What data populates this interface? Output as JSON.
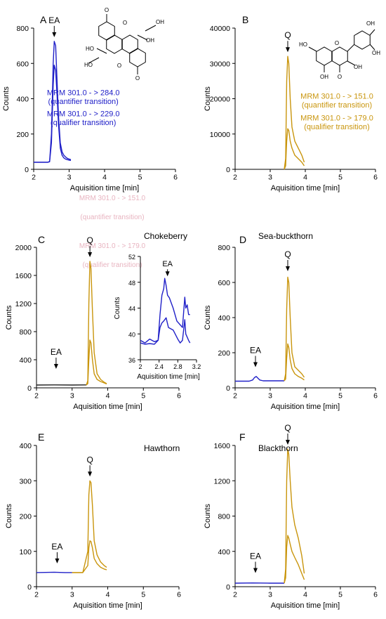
{
  "figure": {
    "colors": {
      "ea": "#2020c8",
      "q": "#c9950c",
      "faint": "#e8b4c0"
    },
    "watermark": [
      "MRM 301.0 - > 151.0",
      "(quantifier transition)",
      "MRM 301.0 - > 179.0",
      "(qualifier transition)"
    ]
  },
  "chart_data": [
    {
      "type": "line",
      "panel": "A",
      "subtitle": "",
      "xlabel": "Aquisition time [min]",
      "ylabel": "Counts",
      "xlim": [
        2,
        6
      ],
      "ylim": [
        0,
        800
      ],
      "xticks": [
        2,
        3,
        4,
        5,
        6
      ],
      "yticks": [
        0,
        200,
        400,
        600,
        800
      ],
      "series": [
        {
          "color": "ea",
          "x": [
            2.0,
            2.4,
            2.45,
            2.5,
            2.55,
            2.58,
            2.62,
            2.66,
            2.7,
            2.75,
            2.8,
            2.85,
            2.9,
            2.95,
            3.0,
            3.05
          ],
          "y": [
            40,
            40,
            45,
            200,
            600,
            725,
            700,
            500,
            300,
            150,
            100,
            80,
            70,
            62,
            58,
            55
          ]
        },
        {
          "color": "ea",
          "x": [
            2.0,
            2.4,
            2.45,
            2.5,
            2.55,
            2.58,
            2.62,
            2.66,
            2.7,
            2.75,
            2.8,
            2.85,
            2.9,
            2.95,
            3.0,
            3.05
          ],
          "y": [
            40,
            40,
            43,
            150,
            480,
            590,
            560,
            420,
            250,
            120,
            80,
            65,
            58,
            55,
            52,
            50
          ]
        }
      ],
      "annotations": [
        {
          "label": "EA",
          "x": 2.58,
          "y": 725,
          "color": "#000000"
        },
        {
          "label": "MRM 301.0 - > 284.0",
          "x": 3.4,
          "y": 420,
          "color": "ea"
        },
        {
          "label": "(quantifier transition)",
          "x": 3.4,
          "y": 370,
          "color": "ea"
        },
        {
          "label": "MRM 301.0 - > 229.0",
          "x": 3.4,
          "y": 300,
          "color": "ea"
        },
        {
          "label": "(qualifier transition)",
          "x": 3.4,
          "y": 250,
          "color": "ea"
        }
      ],
      "molecule": "ellagic-acid",
      "molecule_labels": [
        "HO",
        "OH",
        "HO",
        "OH",
        "O",
        "O",
        "O",
        "O"
      ]
    },
    {
      "type": "line",
      "panel": "B",
      "subtitle": "",
      "xlabel": "Aquisition time [min]",
      "ylabel": "Counts",
      "xlim": [
        2,
        6
      ],
      "ylim": [
        0,
        40000
      ],
      "xticks": [
        2,
        3,
        4,
        5,
        6
      ],
      "yticks": [
        0,
        10000,
        20000,
        30000,
        40000
      ],
      "series": [
        {
          "color": "q",
          "x": [
            3.4,
            3.44,
            3.47,
            3.5,
            3.53,
            3.57,
            3.62,
            3.7,
            3.8,
            3.9,
            3.97
          ],
          "y": [
            0,
            3000,
            25000,
            32000,
            30000,
            20000,
            12000,
            8000,
            6000,
            4000,
            2000
          ]
        },
        {
          "color": "q",
          "x": [
            3.4,
            3.44,
            3.47,
            3.5,
            3.53,
            3.57,
            3.62,
            3.7,
            3.8,
            3.9,
            3.97
          ],
          "y": [
            0,
            1000,
            8000,
            11500,
            11000,
            8000,
            6000,
            4000,
            3000,
            2000,
            1000
          ]
        }
      ],
      "annotations": [
        {
          "label": "Q",
          "x": 3.5,
          "y": 32000,
          "color": "#000000"
        },
        {
          "label": "MRM 301.0 - > 151.0",
          "x": 4.9,
          "y": 20000,
          "color": "q"
        },
        {
          "label": "(quantifier transition)",
          "x": 4.9,
          "y": 17500,
          "color": "q"
        },
        {
          "label": "MRM 301.0 - > 179.0",
          "x": 4.9,
          "y": 13800,
          "color": "q"
        },
        {
          "label": "(qualifier transition)",
          "x": 4.9,
          "y": 11300,
          "color": "q"
        }
      ],
      "molecule": "quercetin",
      "molecule_labels": [
        "OH",
        "OH",
        "HO",
        "O",
        "OH",
        "OH",
        "O"
      ]
    },
    {
      "type": "line",
      "panel": "C",
      "subtitle": "Chokeberry",
      "xlabel": "Aquisition time [min]",
      "ylabel": "Counts",
      "xlim": [
        2,
        6
      ],
      "ylim": [
        0,
        2000
      ],
      "xticks": [
        2,
        3,
        4,
        5,
        6
      ],
      "yticks": [
        0,
        400,
        800,
        1200,
        1600,
        2000
      ],
      "series": [
        {
          "color": "#222222",
          "x": [
            2.0,
            2.5,
            3.0,
            3.4
          ],
          "y": [
            40,
            42,
            40,
            42
          ]
        },
        {
          "color": "q",
          "x": [
            3.4,
            3.44,
            3.47,
            3.5,
            3.53,
            3.57,
            3.62,
            3.7,
            3.8,
            3.9,
            3.97
          ],
          "y": [
            40,
            100,
            1200,
            1800,
            1700,
            1100,
            500,
            200,
            120,
            80,
            60
          ]
        },
        {
          "color": "q",
          "x": [
            3.4,
            3.44,
            3.47,
            3.5,
            3.53,
            3.57,
            3.62,
            3.7,
            3.8,
            3.9,
            3.97
          ],
          "y": [
            40,
            60,
            400,
            680,
            640,
            400,
            200,
            120,
            90,
            70,
            55
          ]
        }
      ],
      "annotations": [
        {
          "label": "EA",
          "x": 2.55,
          "y": 150,
          "color": "#000000"
        },
        {
          "label": "Q",
          "x": 3.5,
          "y": 1800,
          "color": "#000000"
        }
      ],
      "inset": {
        "type": "line",
        "xlabel": "Aquisition time [min]",
        "ylabel": "Counts",
        "xlim": [
          2,
          3.2
        ],
        "ylim": [
          36,
          52
        ],
        "xticks": [
          "2",
          "2.4",
          "2.8",
          "3.2"
        ],
        "xtickvals": [
          2,
          2.4,
          2.8,
          3.2
        ],
        "yticks": [
          36,
          40,
          44,
          48,
          52
        ],
        "series": [
          {
            "color": "ea",
            "x": [
              2.0,
              2.1,
              2.2,
              2.3,
              2.38,
              2.42,
              2.46,
              2.5,
              2.52,
              2.55,
              2.58,
              2.62,
              2.7,
              2.78,
              2.84,
              2.9,
              2.95,
              2.97,
              3.0,
              3.03,
              3.06
            ],
            "y": [
              39,
              38.6,
              39.2,
              38.8,
              39,
              43,
              46,
              47,
              48.6,
              47.5,
              46,
              45.6,
              44,
              42,
              41.5,
              41,
              45.7,
              44,
              44.5,
              43,
              43
            ]
          },
          {
            "color": "ea",
            "x": [
              2.0,
              2.1,
              2.2,
              2.3,
              2.38,
              2.42,
              2.46,
              2.5,
              2.55,
              2.6,
              2.7,
              2.8,
              2.85,
              2.9,
              2.95,
              2.97,
              3.0,
              3.03,
              3.06
            ],
            "y": [
              38.6,
              38.4,
              38.5,
              38.4,
              39,
              41,
              41.7,
              42,
              42.5,
              41,
              40.6,
              39.2,
              38.6,
              39,
              42.2,
              40,
              39.5,
              39,
              38.6
            ]
          }
        ],
        "annotations": [
          {
            "label": "EA",
            "x": 2.58,
            "y": 48.6
          }
        ]
      }
    },
    {
      "type": "line",
      "panel": "D",
      "subtitle": "Sea-buckthorn",
      "xlabel": "Aquisition time [min]",
      "ylabel": "Counts",
      "xlim": [
        2,
        6
      ],
      "ylim": [
        0,
        800
      ],
      "xticks": [
        2,
        3,
        4,
        5,
        6
      ],
      "yticks": [
        0,
        200,
        400,
        600,
        800
      ],
      "series": [
        {
          "color": "ea",
          "x": [
            2.0,
            2.4,
            2.5,
            2.55,
            2.6,
            2.65,
            2.7,
            2.8,
            3.0,
            3.4
          ],
          "y": [
            38,
            38,
            45,
            58,
            65,
            55,
            45,
            40,
            40,
            40
          ]
        },
        {
          "color": "q",
          "x": [
            3.4,
            3.44,
            3.47,
            3.5,
            3.53,
            3.57,
            3.62,
            3.7,
            3.8,
            3.9,
            3.97
          ],
          "y": [
            40,
            80,
            450,
            630,
            600,
            400,
            200,
            120,
            100,
            80,
            60
          ]
        },
        {
          "color": "q",
          "x": [
            3.4,
            3.44,
            3.47,
            3.5,
            3.53,
            3.57,
            3.62,
            3.7,
            3.8,
            3.9,
            3.97
          ],
          "y": [
            40,
            50,
            170,
            250,
            230,
            160,
            110,
            80,
            65,
            55,
            45
          ]
        }
      ],
      "annotations": [
        {
          "label": "EA",
          "x": 2.58,
          "y": 70,
          "color": "#000000"
        },
        {
          "label": "Q",
          "x": 3.5,
          "y": 640,
          "color": "#000000"
        }
      ]
    },
    {
      "type": "line",
      "panel": "E",
      "subtitle": "Hawthorn",
      "xlabel": "Aquisition time [min]",
      "ylabel": "Counts",
      "xlim": [
        2,
        6
      ],
      "ylim": [
        0,
        400
      ],
      "xticks": [
        2,
        3,
        4,
        5,
        6
      ],
      "yticks": [
        0,
        100,
        200,
        300,
        400
      ],
      "series": [
        {
          "color": "ea",
          "x": [
            2.0,
            2.5,
            2.8,
            3.0
          ],
          "y": [
            40,
            41,
            40,
            40
          ]
        },
        {
          "color": "q",
          "x": [
            3.0,
            3.3,
            3.44,
            3.47,
            3.5,
            3.53,
            3.57,
            3.62,
            3.7,
            3.8,
            3.9,
            3.97
          ],
          "y": [
            40,
            40,
            100,
            260,
            300,
            295,
            230,
            130,
            90,
            70,
            60,
            55
          ]
        },
        {
          "color": "q",
          "x": [
            3.0,
            3.3,
            3.44,
            3.47,
            3.5,
            3.53,
            3.57,
            3.62,
            3.7,
            3.8,
            3.9,
            3.97
          ],
          "y": [
            40,
            40,
            60,
            110,
            130,
            128,
            110,
            80,
            65,
            55,
            50,
            48
          ]
        }
      ],
      "annotations": [
        {
          "label": "EA",
          "x": 2.58,
          "y": 42,
          "color": "#000000"
        },
        {
          "label": "Q",
          "x": 3.5,
          "y": 300,
          "color": "#000000"
        }
      ]
    },
    {
      "type": "line",
      "panel": "F",
      "subtitle": "Blackthorn",
      "xlabel": "Aquisition time [min]",
      "ylabel": "Counts",
      "xlim": [
        2,
        6
      ],
      "ylim": [
        0,
        1600
      ],
      "xticks": [
        2,
        3,
        4,
        5,
        6
      ],
      "yticks": [
        0,
        400,
        800,
        1200,
        1600
      ],
      "series": [
        {
          "color": "ea",
          "x": [
            2.0,
            2.5,
            3.0,
            3.4
          ],
          "y": [
            40,
            42,
            40,
            40
          ]
        },
        {
          "color": "q",
          "x": [
            3.4,
            3.44,
            3.47,
            3.5,
            3.53,
            3.57,
            3.62,
            3.7,
            3.8,
            3.9,
            3.97
          ],
          "y": [
            40,
            200,
            1200,
            1560,
            1500,
            1200,
            900,
            700,
            550,
            350,
            150
          ]
        },
        {
          "color": "q",
          "x": [
            3.4,
            3.44,
            3.47,
            3.5,
            3.53,
            3.57,
            3.62,
            3.7,
            3.8,
            3.9,
            3.97
          ],
          "y": [
            40,
            100,
            450,
            580,
            550,
            480,
            400,
            330,
            250,
            150,
            80
          ]
        }
      ],
      "annotations": [
        {
          "label": "EA",
          "x": 2.58,
          "y": 60,
          "color": "#000000"
        },
        {
          "label": "Q",
          "x": 3.5,
          "y": 1560,
          "color": "#000000"
        }
      ]
    }
  ]
}
